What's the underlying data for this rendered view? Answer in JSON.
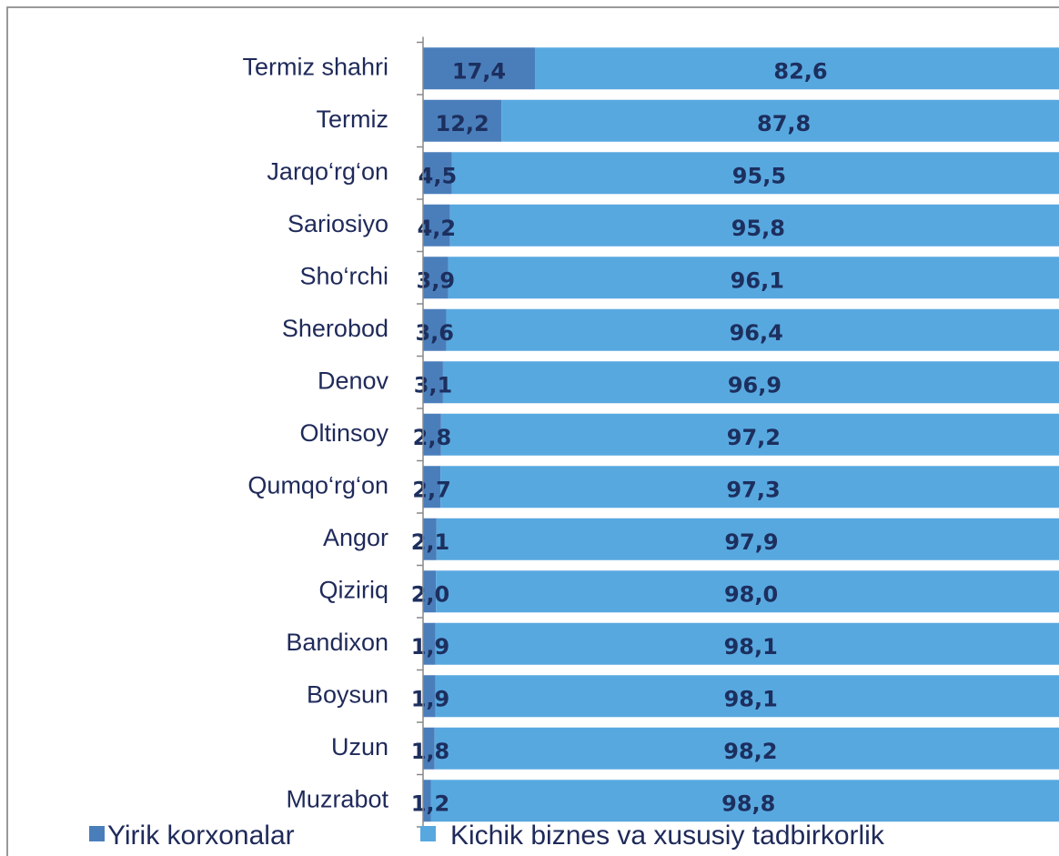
{
  "chart_data": {
    "type": "bar",
    "orientation": "horizontal",
    "stacked": true,
    "categories": [
      "Termiz shahri",
      "Termiz",
      "Jarqo‘rg‘on",
      "Sariosiyo",
      "Sho‘rchi",
      "Sherobod",
      "Denov",
      "Oltinsoy",
      "Qumqo‘rg‘on",
      "Angor",
      "Qiziriq",
      "Bandixon",
      "Boysun",
      "Uzun",
      "Muzrabot"
    ],
    "series": [
      {
        "name": "Yirik korxonalar",
        "color": "#4a7ebb",
        "values": [
          17.4,
          12.2,
          4.5,
          4.2,
          3.9,
          3.6,
          3.1,
          2.8,
          2.7,
          2.1,
          2.0,
          1.9,
          1.9,
          1.8,
          1.2
        ],
        "value_labels": [
          "17,4",
          "12,2",
          "4,5",
          "4,2",
          "3,9",
          "3,6",
          "3,1",
          "2,8",
          "2,7",
          "2,1",
          "2,0",
          "1,9",
          "1,9",
          "1,8",
          "1,2"
        ]
      },
      {
        "name": "Kichik biznes va xususiy tadbirkorlik",
        "color": "#58a8e0",
        "values": [
          82.6,
          87.8,
          95.5,
          95.8,
          96.1,
          96.4,
          96.9,
          97.2,
          97.3,
          97.9,
          98.0,
          98.1,
          98.1,
          98.2,
          98.8
        ],
        "value_labels": [
          "82,6",
          "87,8",
          "95,5",
          "95,8",
          "96,1",
          "96,4",
          "96,9",
          "97,2",
          "97,3",
          "97,9",
          "98,0",
          "98,1",
          "98,1",
          "98,2",
          "98,8"
        ]
      }
    ],
    "xlim": [
      0,
      100
    ],
    "legend": "bottom"
  }
}
